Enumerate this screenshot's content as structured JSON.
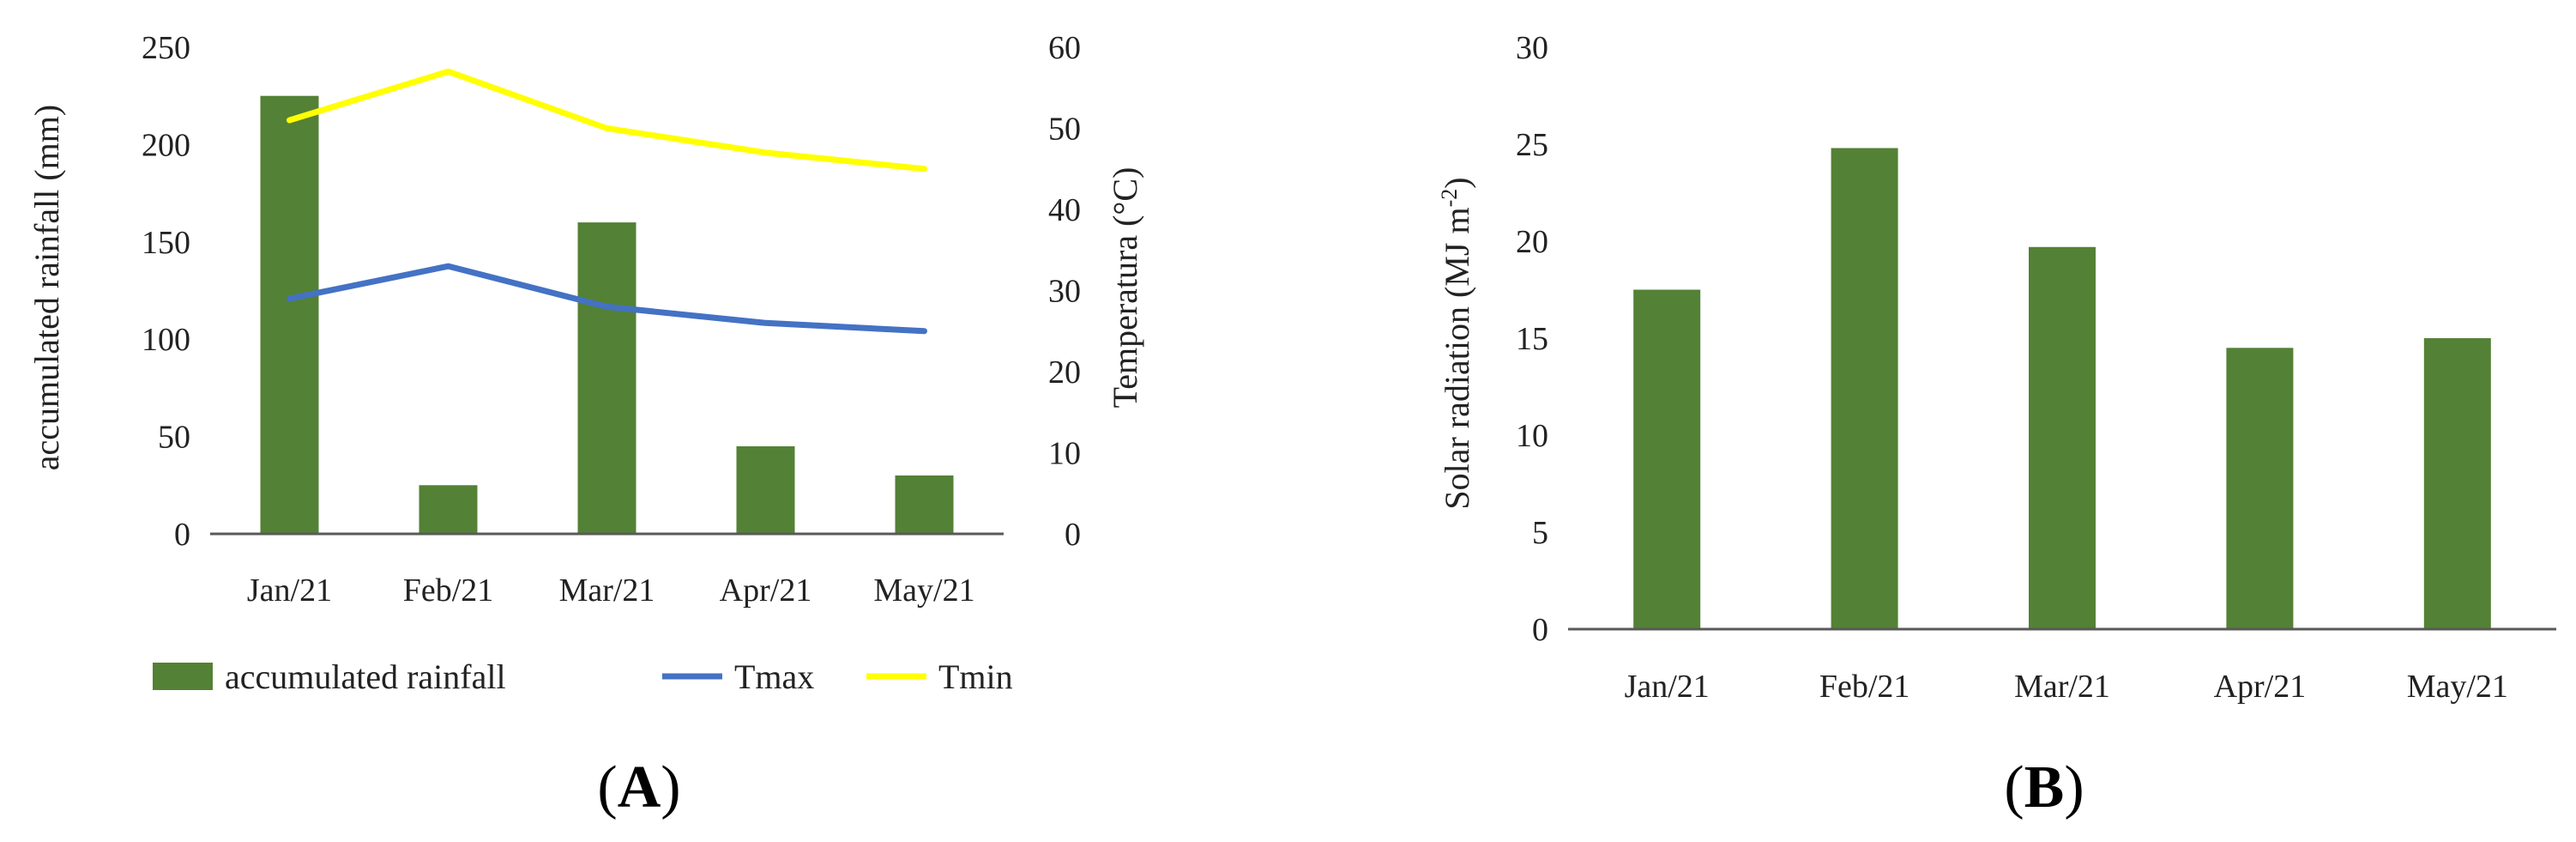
{
  "colors": {
    "bar": "#538135",
    "tmax": "#4472C4",
    "tmin": "#FFFF00",
    "axis": "#595959"
  },
  "chart_data": [
    {
      "type": "bar+line",
      "panel_label": {
        "open": "(",
        "letter": "A",
        "close": ")"
      },
      "categories": [
        "Jan/21",
        "Feb/21",
        "Mar/21",
        "Apr/21",
        "May/21"
      ],
      "ylabel": "accumulated rainfall (mm)",
      "ylim": [
        0,
        250
      ],
      "yticks": [
        "0",
        "50",
        "100",
        "150",
        "200",
        "250"
      ],
      "y2label": "Temperatura (°C)",
      "y2lim": [
        0,
        60
      ],
      "y2ticks": [
        "0",
        "10",
        "20",
        "30",
        "40",
        "50",
        "60"
      ],
      "series": [
        {
          "name": "accumulated rainfall",
          "type": "bar",
          "axis": "left",
          "values": [
            225,
            25,
            160,
            45,
            30
          ]
        },
        {
          "name": "Tmax",
          "type": "line",
          "axis": "right",
          "values": [
            29,
            33,
            28,
            26,
            25
          ]
        },
        {
          "name": "Tmin",
          "type": "line",
          "axis": "right",
          "values": [
            51,
            57,
            50,
            47,
            45
          ]
        }
      ],
      "legend": "bottom"
    },
    {
      "type": "bar",
      "panel_label": {
        "open": "(",
        "letter": "B",
        "close": ")"
      },
      "categories": [
        "Jan/21",
        "Feb/21",
        "Mar/21",
        "Apr/21",
        "May/21"
      ],
      "ylabel_main": "Solar radiation (MJ m",
      "ylabel_sup": "-2",
      "ylabel_close": ")",
      "ylim": [
        0,
        30
      ],
      "yticks": [
        "0",
        "5",
        "10",
        "15",
        "20",
        "25",
        "30"
      ],
      "values": [
        17.5,
        24.8,
        19.7,
        14.5,
        15.0
      ]
    }
  ]
}
